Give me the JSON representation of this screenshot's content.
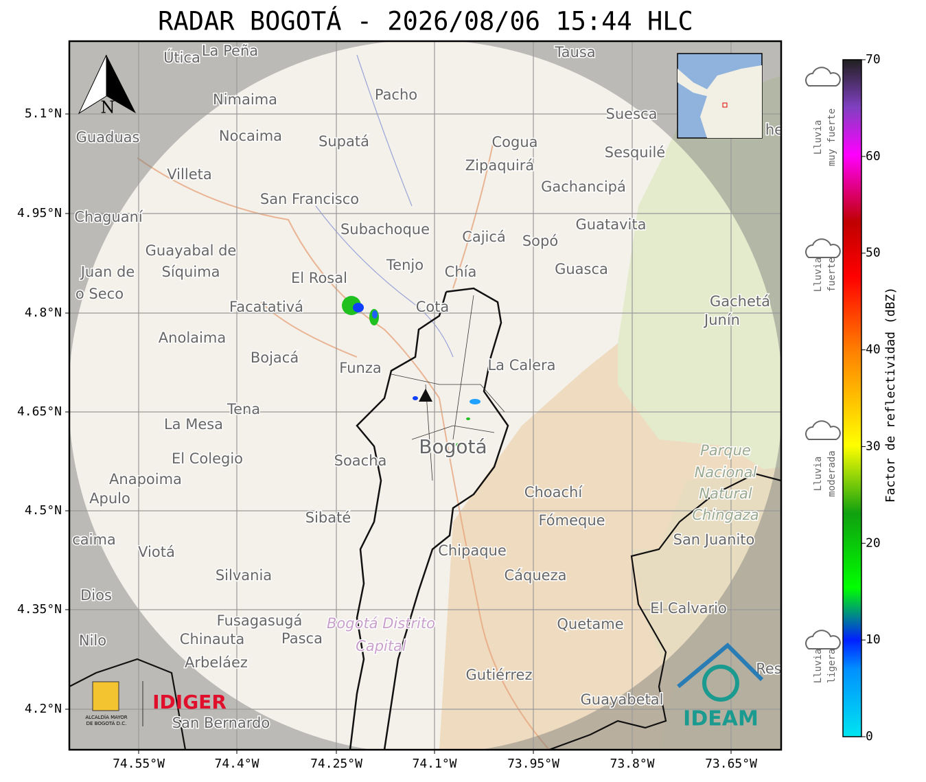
{
  "title": "RADAR BOGOTÁ - 2026/08/06 15:44 HLC",
  "map": {
    "lat_ticks": [
      "5.1°N",
      "4.95°N",
      "4.8°N",
      "4.65°N",
      "4.5°N",
      "4.35°N",
      "4.2°N"
    ],
    "lon_ticks": [
      "74.55°W",
      "74.4°W",
      "74.25°W",
      "74.1°W",
      "73.95°W",
      "73.8°W",
      "73.65°W"
    ],
    "north": "N",
    "places": [
      "Útica",
      "La Peña",
      "Tausa",
      "Pacho",
      "Nimaima",
      "Guaduas",
      "Nocaima",
      "Supatá",
      "Cogua",
      "Suesca",
      "Sesquilé",
      "Zipaquirá",
      "Villeta",
      "Gachancipá",
      "San Francisco",
      "Chaguaní",
      "Guatavita",
      "Subachoque",
      "Cajicá",
      "Sopó",
      "Guayabal de",
      "Síquima",
      "Juan de",
      "o Seco",
      "Tenjo",
      "Chía",
      "Guasca",
      "El Rosal",
      "Facatativá",
      "Cota",
      "Gachetá",
      "Junín",
      "Anolaima",
      "Bojacá",
      "Funza",
      "La Calera",
      "Tena",
      "La Mesa",
      "Bogotá",
      "El Colegio",
      "Soacha",
      "Anapoima",
      "Apulo",
      "Choachí",
      "Sibaté",
      "Fómeque",
      "San Juanito",
      "caima",
      "Viotá",
      "Chipaque",
      "Silvania",
      "Cáqueza",
      "Dios",
      "El Calvario",
      "Fusagasugá",
      "Quetame",
      "Nilo",
      "Chinauta",
      "Pasca",
      "Arbeláez",
      "Gutiérrez",
      "Res",
      "Guayabetal",
      "San Bernardo",
      "he"
    ],
    "park": [
      "Parque",
      "Nacional",
      "Natural",
      "Chingaza"
    ],
    "district": [
      "Bogotá Distrito",
      "Capital"
    ]
  },
  "logos": {
    "alcaldia": [
      "ALCALDÍA MAYOR",
      "DE BOGOTÁ D.C."
    ],
    "idiger": "IDIGER",
    "ideam": "IDEAM"
  },
  "colorbar": {
    "label": "Factor de reflectividad (dBZ)",
    "lim": [
      0,
      70
    ],
    "ticks": [
      0,
      10,
      20,
      30,
      40,
      50,
      60,
      70
    ]
  },
  "legend": [
    [
      "Lluvia",
      "muy fuerte"
    ],
    [
      "Lluvia",
      "fuerte"
    ],
    [
      "Lluvia",
      "moderada"
    ],
    [
      "Lluvia",
      "ligera"
    ]
  ]
}
